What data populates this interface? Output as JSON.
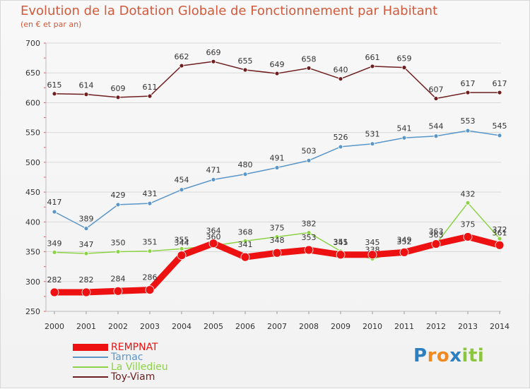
{
  "chart_data": {
    "type": "line",
    "title": "Evolution de la Dotation Globale de Fonctionnement par Habitant",
    "subtitle": "(en € et par an)",
    "x": [
      "2000",
      "2001",
      "2002",
      "2003",
      "2004",
      "2005",
      "2006",
      "2007",
      "2008",
      "2009",
      "2010",
      "2011",
      "2012",
      "2013",
      "2014"
    ],
    "ylim": [
      250,
      700
    ],
    "yticks": [
      250,
      300,
      350,
      400,
      450,
      500,
      550,
      600,
      650,
      700
    ],
    "grid": "horizontal",
    "legend_position": "bottom-left",
    "series": [
      {
        "name": "Toy-Viam",
        "color": "#6e1e1e",
        "values": [
          615,
          614,
          609,
          611,
          662,
          669,
          655,
          649,
          658,
          640,
          661,
          659,
          607,
          617,
          617
        ]
      },
      {
        "name": "Tarnac",
        "color": "#5a96c8",
        "values": [
          417,
          389,
          429,
          431,
          454,
          471,
          480,
          491,
          503,
          526,
          531,
          541,
          544,
          553,
          545
        ]
      },
      {
        "name": "La Villedieu",
        "color": "#8cd246",
        "values": [
          349,
          347,
          350,
          351,
          355,
          360,
          368,
          375,
          382,
          351,
          338,
          352,
          363,
          432,
          372
        ]
      },
      {
        "name": "REMPNAT",
        "color": "#ee1111",
        "values": [
          282,
          282,
          284,
          286,
          344,
          364,
          341,
          348,
          353,
          345,
          345,
          349,
          363,
          375,
          361
        ]
      }
    ]
  },
  "legend": [
    {
      "label": "REMPNAT",
      "color": "#ee1111",
      "thickness": 10
    },
    {
      "label": "Tarnac",
      "color": "#5a96c8",
      "thickness": 2
    },
    {
      "label": "La Villedieu",
      "color": "#8cd246",
      "thickness": 2
    },
    {
      "label": "Toy-Viam",
      "color": "#6e1e1e",
      "thickness": 2
    }
  ],
  "logo": {
    "letters": [
      {
        "ch": "P",
        "color": "#2e7fc0"
      },
      {
        "ch": "r",
        "color": "#f08a1e"
      },
      {
        "ch": "o",
        "color": "#f08a1e"
      },
      {
        "ch": "x",
        "color": "#2e7fc0"
      },
      {
        "ch": "i",
        "color": "#8cc63f"
      },
      {
        "ch": "t",
        "color": "#8cc63f"
      },
      {
        "ch": "i",
        "color": "#8cc63f"
      }
    ]
  }
}
